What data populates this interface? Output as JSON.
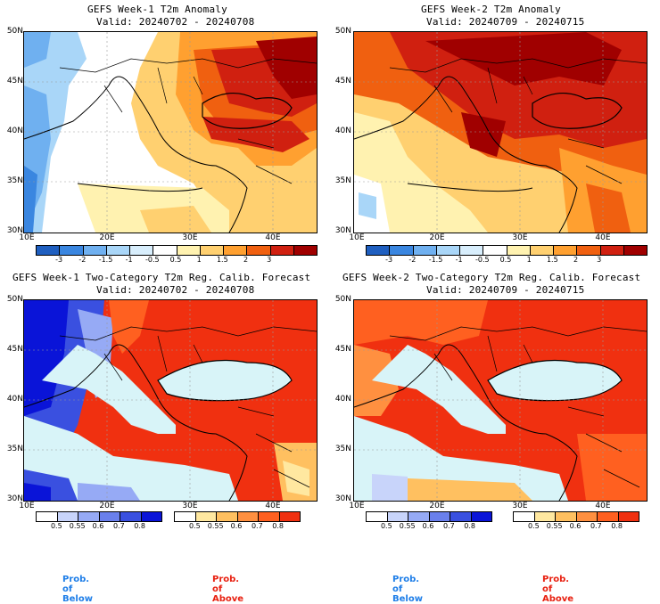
{
  "panels": [
    {
      "title1": "GEFS Week-1 T2m Anomaly",
      "title2": "Valid: 20240702 - 20240708"
    },
    {
      "title1": "GEFS Week-2 T2m Anomaly",
      "title2": "Valid: 20240709 - 20240715"
    },
    {
      "title1": "GEFS Week-1 Two-Category T2m Reg. Calib. Forecast",
      "title2": "Valid: 20240702 - 20240708"
    },
    {
      "title1": "GEFS Week-2 Two-Category T2m Reg. Calib. Forecast",
      "title2": "Valid: 20240709 - 20240715"
    }
  ],
  "lat_labels": [
    "50N",
    "45N",
    "40N",
    "35N",
    "30N"
  ],
  "lon_labels": [
    "10E",
    "20E",
    "30E",
    "40E"
  ],
  "anomaly_legend": {
    "labels": [
      "-3",
      "-2",
      "-1.5",
      "-1",
      "-0.5",
      "0.5",
      "1",
      "1.5",
      "2",
      "3"
    ],
    "colors": [
      "#1f5fc0",
      "#3a86e0",
      "#6fb0f0",
      "#a9d6f8",
      "#d8eefc",
      "#ffffff",
      "#fff2b0",
      "#ffd070",
      "#ffa030",
      "#f06010",
      "#d02010",
      "#a00000"
    ]
  },
  "prob_legend": {
    "below_labels": [
      "0.5",
      "0.55",
      "0.6",
      "0.7",
      "0.8"
    ],
    "below_colors": [
      "#ffffff",
      "#c8d4fa",
      "#96aaf5",
      "#6a80ec",
      "#3a50e0",
      "#0a14d8"
    ],
    "above_labels": [
      "0.5",
      "0.55",
      "0.6",
      "0.7",
      "0.8"
    ],
    "above_colors": [
      "#ffffff",
      "#ffe8a0",
      "#ffc060",
      "#ff9040",
      "#ff6020",
      "#f03010"
    ],
    "below_title": "Prob. of Below",
    "above_title": "Prob. of Above",
    "below_color": "#1e7ee8",
    "above_color": "#e82010"
  },
  "colors": {
    "sea_fill": "#d8f4f8",
    "grid": "#9a9a9a"
  }
}
